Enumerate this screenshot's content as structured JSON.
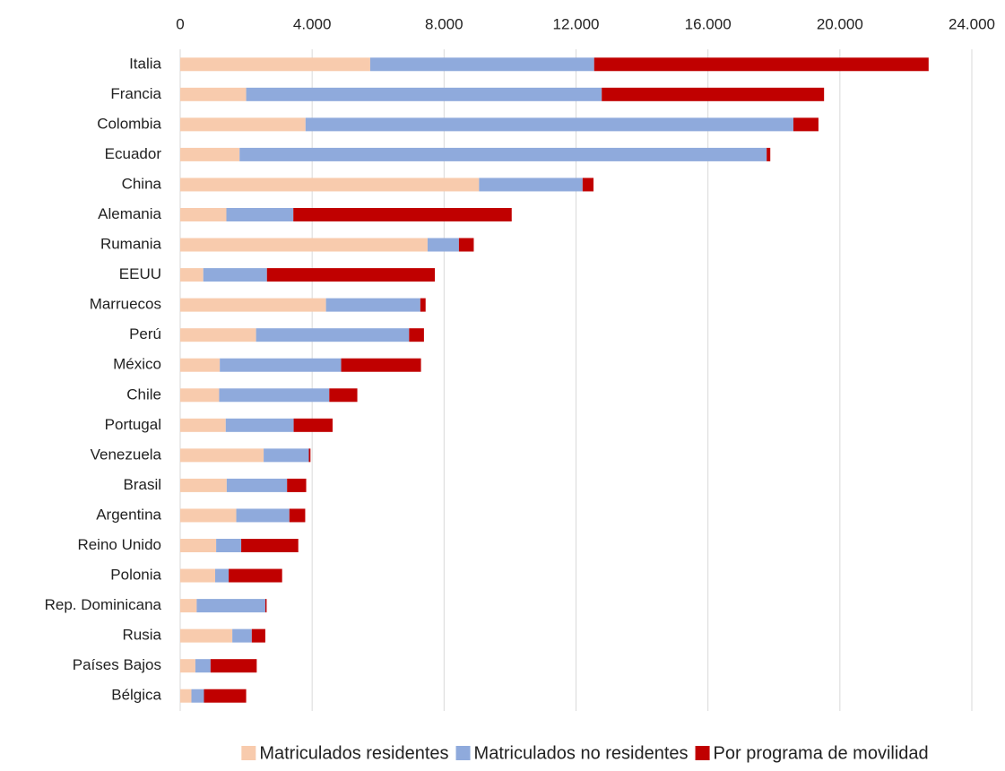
{
  "chart_data": {
    "type": "stacked_barh",
    "categories": [
      "Italia",
      "Francia",
      "Colombia",
      "Ecuador",
      "China",
      "Alemania",
      "Rumania",
      "EEUU",
      "Marruecos",
      "Perú",
      "México",
      "Chile",
      "Portugal",
      "Venezuela",
      "Brasil",
      "Argentina",
      "Reino Unido",
      "Polonia",
      "Rep. Dominicana",
      "Rusia",
      "Países Bajos",
      "Bélgica"
    ],
    "series": [
      {
        "name": "Matriculados residentes",
        "color": "#f8cbad",
        "values": [
          5760,
          2000,
          3800,
          1800,
          9060,
          1400,
          7500,
          700,
          4420,
          2300,
          1200,
          1180,
          1380,
          2530,
          1410,
          1700,
          1090,
          1060,
          500,
          1580,
          460,
          340
        ]
      },
      {
        "name": "Matriculados no residentes",
        "color": "#8faadc",
        "values": [
          6790,
          10780,
          14790,
          15980,
          3140,
          2030,
          950,
          1930,
          2860,
          4640,
          3680,
          3340,
          2060,
          1370,
          1830,
          1610,
          760,
          410,
          2080,
          590,
          460,
          380
        ]
      },
      {
        "name": "Por programa de movilidad",
        "color": "#c00000",
        "values": [
          10140,
          6740,
          760,
          110,
          330,
          6620,
          450,
          5090,
          160,
          450,
          2420,
          850,
          1180,
          50,
          580,
          480,
          1730,
          1620,
          40,
          410,
          1400,
          1280
        ]
      }
    ],
    "xlim": [
      0,
      24000
    ],
    "xticks": [
      0,
      {
        "value": 4000,
        "label": "4.000"
      },
      {
        "value": 8000,
        "label": "8.000"
      },
      {
        "value": 12000,
        "label": "12.000"
      },
      {
        "value": 16000,
        "label": "16.000"
      },
      {
        "value": 20000,
        "label": "20.000"
      },
      {
        "value": 24000,
        "label": "24.000"
      }
    ],
    "grid": true,
    "legend": "bottom"
  }
}
